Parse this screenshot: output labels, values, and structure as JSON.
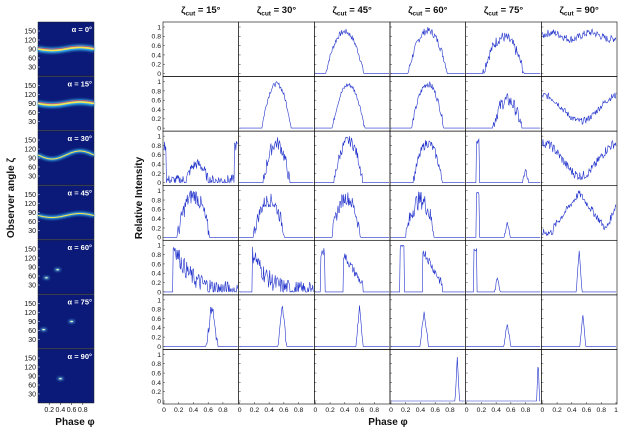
{
  "left_panel": {
    "ylabel": "Observer angle ζ",
    "xlabel": "Phase φ",
    "y_ticks": [
      "150",
      "120",
      "90",
      "60",
      "30"
    ],
    "x_ticks": [
      "0.2",
      "0.4",
      "0.6",
      "0.8"
    ],
    "maps": [
      {
        "label": "α = 0°",
        "peak_zeta": 90
      },
      {
        "label": "α = 15°",
        "peak_zeta": 90
      },
      {
        "label": "α = 30°",
        "peak_zeta": 100
      },
      {
        "label": "α = 45°",
        "peak_zeta": 80
      },
      {
        "label": "α = 60°",
        "peak_zeta": 75
      },
      {
        "label": "α = 75°",
        "peak_zeta": 60
      },
      {
        "label": "α = 90°",
        "peak_zeta": 60
      }
    ]
  },
  "right_panel": {
    "ylabel": "Relative Intensity",
    "xlabel": "Phase φ",
    "y_ticks": [
      "1",
      "0.8",
      "0.6",
      "0.4",
      "0.2",
      "0"
    ],
    "x_ticks": [
      "0",
      "0.2",
      "0.4",
      "0.6",
      "0.8",
      "1"
    ],
    "columns": [
      {
        "prefix": "ζ",
        "sub": "cut",
        "value": " = 15°"
      },
      {
        "prefix": "ζ",
        "sub": "cut",
        "value": " = 30°"
      },
      {
        "prefix": "ζ",
        "sub": "cut",
        "value": " = 45°"
      },
      {
        "prefix": "ζ",
        "sub": "cut",
        "value": " = 60°"
      },
      {
        "prefix": "ζ",
        "sub": "cut",
        "value": " = 75°"
      },
      {
        "prefix": "ζ",
        "sub": "cut",
        "value": " = 90°"
      }
    ]
  },
  "colors": {
    "map_bg": "#0b1a78",
    "curve": "#2233cc",
    "axis": "#000000"
  },
  "chart_data": {
    "type": "line",
    "title": "",
    "xlabel": "Phase φ",
    "ylabel": "Relative Intensity",
    "xlim": [
      0,
      1
    ],
    "ylim": [
      0,
      1
    ],
    "rows": [
      "α = 0°",
      "α = 15°",
      "α = 30°",
      "α = 45°",
      "α = 60°",
      "α = 75°",
      "α = 90°"
    ],
    "columns": [
      "ζcut = 15°",
      "ζcut = 30°",
      "ζcut = 45°",
      "ζcut = 60°",
      "ζcut = 75°",
      "ζcut = 90°"
    ],
    "panels": [
      [
        null,
        null,
        {
          "shape": "bump",
          "c": 0.4,
          "w": 0.26,
          "a": 0.9,
          "n": 0.06
        },
        {
          "shape": "bump",
          "c": 0.5,
          "w": 0.27,
          "a": 0.92,
          "n": 0.08
        },
        {
          "shape": "bump",
          "c": 0.5,
          "w": 0.28,
          "a": 0.78,
          "n": 0.12
        },
        {
          "shape": "flat",
          "a": 0.88,
          "n": 0.08
        }
      ],
      [
        null,
        {
          "shape": "bump",
          "c": 0.5,
          "w": 0.2,
          "a": 0.95,
          "n": 0.05
        },
        {
          "shape": "bump",
          "c": 0.45,
          "w": 0.22,
          "a": 0.93,
          "n": 0.05
        },
        {
          "shape": "bump",
          "c": 0.5,
          "w": 0.22,
          "a": 0.95,
          "n": 0.07
        },
        {
          "shape": "bump",
          "c": 0.55,
          "w": 0.2,
          "a": 0.6,
          "n": 0.15
        },
        {
          "shape": "wave",
          "a": 0.55,
          "n": 0.07
        }
      ],
      [
        {
          "shape": "double",
          "c": 0.45,
          "w": 0.15,
          "a": 0.75,
          "n": 0.12
        },
        {
          "shape": "bump",
          "c": 0.5,
          "w": 0.18,
          "a": 0.85,
          "n": 0.15
        },
        {
          "shape": "bump",
          "c": 0.45,
          "w": 0.2,
          "a": 0.9,
          "n": 0.12
        },
        {
          "shape": "bump",
          "c": 0.5,
          "w": 0.2,
          "a": 0.85,
          "n": 0.1
        },
        {
          "shape": "spikes",
          "c": 0.15,
          "c2": 0.8,
          "a": 0.9,
          "n": 0.05
        },
        {
          "shape": "wave",
          "a": 0.7,
          "n": 0.1
        }
      ],
      [
        {
          "shape": "bump",
          "c": 0.4,
          "w": 0.22,
          "a": 0.9,
          "n": 0.18
        },
        {
          "shape": "bump",
          "c": 0.4,
          "w": 0.22,
          "a": 0.8,
          "n": 0.15
        },
        {
          "shape": "bump",
          "c": 0.42,
          "w": 0.2,
          "a": 0.85,
          "n": 0.15
        },
        {
          "shape": "bump",
          "c": 0.4,
          "w": 0.2,
          "a": 0.8,
          "n": 0.2
        },
        {
          "shape": "spikes",
          "c": 0.15,
          "c2": 0.55,
          "a": 0.95,
          "n": 0.05
        },
        {
          "shape": "tri",
          "a": 0.85,
          "n": 0.08
        }
      ],
      [
        {
          "shape": "decay",
          "c": 0.15,
          "w": 0.35,
          "a": 0.95,
          "n": 0.2
        },
        {
          "shape": "decay",
          "c": 0.2,
          "w": 0.3,
          "a": 0.8,
          "n": 0.2
        },
        {
          "shape": "pair",
          "c": 0.1,
          "c2": 0.4,
          "a": 0.85,
          "n": 0.1
        },
        {
          "shape": "pair",
          "c": 0.15,
          "c2": 0.45,
          "a": 0.95,
          "n": 0.1
        },
        {
          "shape": "spikes",
          "c": 0.12,
          "c2": 0.42,
          "a": 0.9,
          "n": 0.05
        },
        {
          "shape": "narrow",
          "c": 0.5,
          "w": 0.04,
          "a": 0.9,
          "n": 0.02
        }
      ],
      [
        {
          "shape": "narrow",
          "c": 0.65,
          "w": 0.08,
          "a": 0.9,
          "n": 0.15
        },
        {
          "shape": "narrow",
          "c": 0.58,
          "w": 0.06,
          "a": 0.85,
          "n": 0.1
        },
        {
          "shape": "narrow",
          "c": 0.6,
          "w": 0.05,
          "a": 0.85,
          "n": 0.05
        },
        {
          "shape": "narrow",
          "c": 0.45,
          "w": 0.06,
          "a": 0.75,
          "n": 0.05
        },
        {
          "shape": "narrow",
          "c": 0.55,
          "w": 0.05,
          "a": 0.5,
          "n": 0.05
        },
        {
          "shape": "narrow",
          "c": 0.55,
          "w": 0.04,
          "a": 0.7,
          "n": 0.03
        }
      ],
      [
        null,
        null,
        null,
        {
          "shape": "narrow",
          "c": 0.9,
          "w": 0.03,
          "a": 0.95,
          "n": 0.02
        },
        {
          "shape": "narrow",
          "c": 0.97,
          "w": 0.02,
          "a": 0.9,
          "n": 0.02
        },
        null
      ]
    ]
  }
}
